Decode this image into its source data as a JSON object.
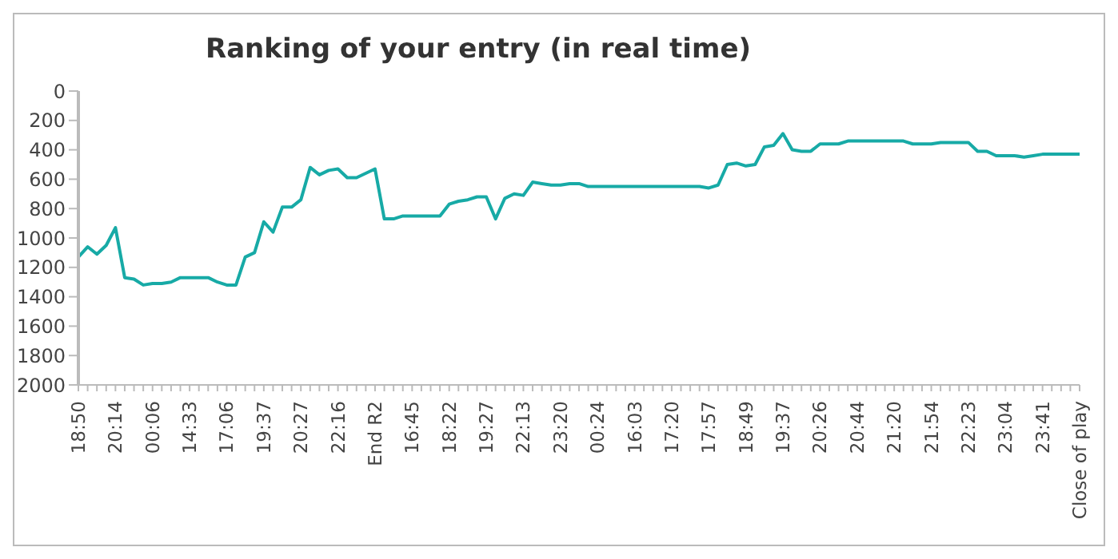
{
  "chart_data": {
    "type": "line",
    "title": "Ranking of your entry (in real time)",
    "categories": [
      "18:50",
      null,
      null,
      null,
      "20:14",
      null,
      null,
      null,
      "00:06",
      null,
      null,
      null,
      "14:33",
      null,
      null,
      null,
      "17:06",
      null,
      null,
      null,
      "19:37",
      null,
      null,
      null,
      "20:27",
      null,
      null,
      null,
      "22:16",
      null,
      null,
      null,
      "End R2",
      null,
      null,
      null,
      "16:45",
      null,
      null,
      null,
      "18:22",
      null,
      null,
      null,
      "19:27",
      null,
      null,
      null,
      "22:13",
      null,
      null,
      null,
      "23:20",
      null,
      null,
      null,
      "00:24",
      null,
      null,
      null,
      "16:03",
      null,
      null,
      null,
      "17:20",
      null,
      null,
      null,
      "17:57",
      null,
      null,
      null,
      "18:49",
      null,
      null,
      null,
      "19:37",
      null,
      null,
      null,
      "20:26",
      null,
      null,
      null,
      "20:44",
      null,
      null,
      null,
      "21:20",
      null,
      null,
      null,
      "21:54",
      null,
      null,
      null,
      "22:23",
      null,
      null,
      null,
      "23:04",
      null,
      null,
      null,
      "23:41",
      null,
      null,
      null,
      "Close of play"
    ],
    "series": [
      {
        "color": "#17aaa6",
        "values": [
          1130,
          1060,
          1110,
          1050,
          930,
          1270,
          1280,
          1320,
          1310,
          1310,
          1300,
          1270,
          1270,
          1270,
          1270,
          1300,
          1320,
          1320,
          1130,
          1100,
          890,
          960,
          790,
          790,
          740,
          520,
          570,
          540,
          530,
          590,
          590,
          560,
          530,
          870,
          870,
          850,
          850,
          850,
          850,
          850,
          770,
          750,
          740,
          720,
          720,
          870,
          730,
          700,
          710,
          620,
          630,
          640,
          640,
          630,
          630,
          650,
          650,
          650,
          650,
          650,
          650,
          650,
          650,
          650,
          650,
          650,
          650,
          650,
          660,
          640,
          500,
          490,
          510,
          500,
          380,
          370,
          290,
          400,
          410,
          410,
          360,
          360,
          360,
          340,
          340,
          340,
          340,
          340,
          340,
          340,
          360,
          360,
          360,
          350,
          350,
          350,
          350,
          410,
          410,
          440,
          440,
          440,
          450,
          440,
          430,
          430,
          430,
          430,
          430
        ]
      }
    ],
    "ylim": [
      2000,
      0
    ],
    "yticks": [
      0,
      200,
      400,
      600,
      800,
      1000,
      1200,
      1400,
      1600,
      1800,
      2000
    ],
    "grid": false,
    "legend": false,
    "marker": "none",
    "line_style": "solid"
  }
}
